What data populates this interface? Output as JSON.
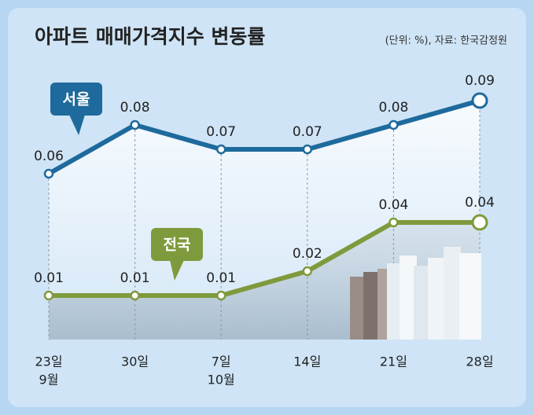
{
  "chart_data": {
    "type": "line",
    "title": "아파트 매매가격지수 변동률",
    "subtitle": "(단위: %), 자료: 한국감정원",
    "categories": [
      "23일",
      "30일",
      "7일",
      "14일",
      "21일",
      "28일"
    ],
    "month_labels": [
      "9월",
      null,
      "10월",
      null,
      null,
      null
    ],
    "series": [
      {
        "name": "서울",
        "color": "#1e6a9c",
        "values": [
          0.06,
          0.08,
          0.07,
          0.07,
          0.08,
          0.09
        ]
      },
      {
        "name": "전국",
        "color": "#7f9a3c",
        "values": [
          0.01,
          0.01,
          0.01,
          0.02,
          0.04,
          0.04
        ]
      }
    ]
  }
}
